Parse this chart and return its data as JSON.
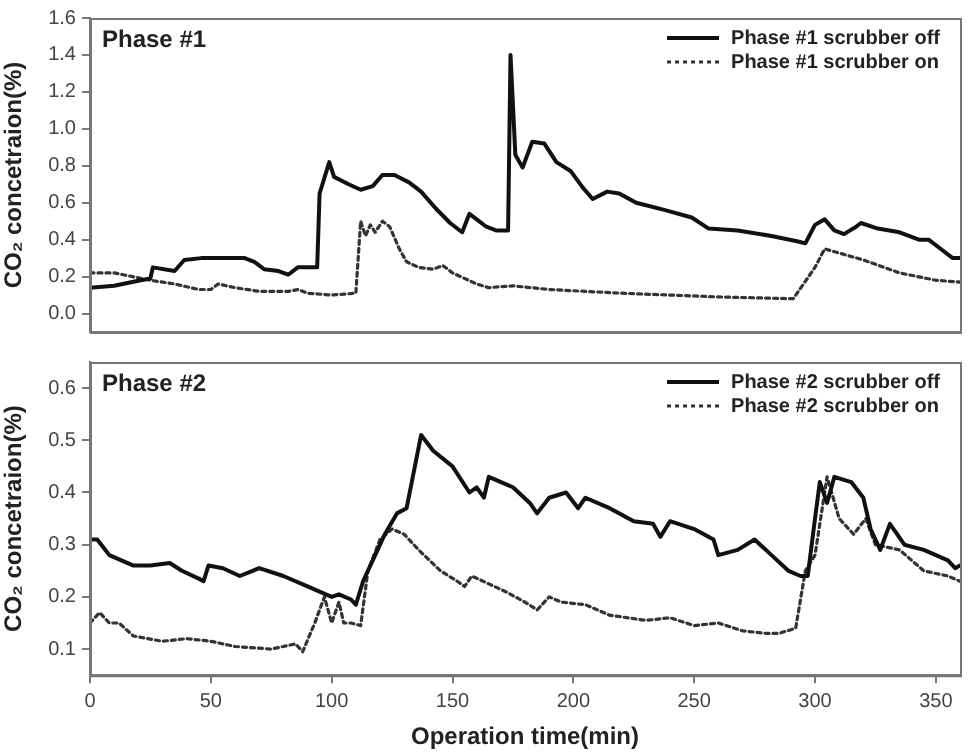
{
  "chart_data": [
    {
      "type": "line",
      "title": "Phase #1",
      "ylabel": "CO₂ concetraion(%)",
      "xlim": [
        0,
        360
      ],
      "xticks": [
        0,
        50,
        100,
        150,
        200,
        250,
        300,
        350
      ],
      "ylim": [
        -0.1,
        1.6
      ],
      "yticks": [
        {
          "value": 0,
          "label": "0.0"
        },
        0.2,
        0.4,
        0.6,
        0.8,
        {
          "value": 1,
          "label": "1.0"
        },
        1.2,
        1.4,
        1.6
      ],
      "tick_labels": "y",
      "grid": false,
      "legend": "top right",
      "marker": "none",
      "series": [
        {
          "name": "Phase #1 scrubber off",
          "color": "#111111",
          "line_style": "solid",
          "x": [
            0,
            10,
            21,
            25,
            26,
            35,
            39,
            46,
            54,
            64,
            68,
            72,
            78,
            82,
            86,
            94,
            95,
            99,
            101,
            107,
            112,
            117,
            121,
            126,
            132,
            137,
            143,
            149,
            154,
            157,
            160,
            164,
            168,
            173,
            174,
            176,
            179,
            183,
            188,
            193,
            199,
            204,
            208,
            214,
            219,
            226,
            238,
            249,
            256,
            268,
            282,
            293,
            296,
            300,
            304,
            308,
            312,
            317,
            319,
            326,
            335,
            343,
            347,
            351,
            357,
            360
          ],
          "values": [
            0.14,
            0.15,
            0.18,
            0.19,
            0.25,
            0.23,
            0.29,
            0.3,
            0.3,
            0.3,
            0.28,
            0.24,
            0.23,
            0.21,
            0.25,
            0.25,
            0.65,
            0.82,
            0.74,
            0.7,
            0.67,
            0.69,
            0.75,
            0.75,
            0.71,
            0.66,
            0.57,
            0.49,
            0.44,
            0.54,
            0.51,
            0.47,
            0.45,
            0.45,
            1.4,
            0.86,
            0.79,
            0.93,
            0.92,
            0.82,
            0.77,
            0.68,
            0.62,
            0.66,
            0.65,
            0.6,
            0.56,
            0.52,
            0.46,
            0.45,
            0.42,
            0.39,
            0.38,
            0.48,
            0.51,
            0.45,
            0.43,
            0.47,
            0.49,
            0.46,
            0.44,
            0.4,
            0.4,
            0.36,
            0.3,
            0.3
          ]
        },
        {
          "name": "Phase #1 scrubber on",
          "color": "#333333",
          "line_style": "dotted",
          "x": [
            0,
            10,
            25,
            35,
            45,
            50,
            53,
            60,
            70,
            82,
            86,
            90,
            100,
            110,
            112,
            114,
            116,
            118,
            121,
            124,
            128,
            131,
            136,
            142,
            146,
            150,
            160,
            165,
            175,
            190,
            220,
            260,
            291,
            300,
            304,
            320,
            335,
            350,
            360
          ],
          "values": [
            0.22,
            0.22,
            0.18,
            0.16,
            0.13,
            0.13,
            0.16,
            0.14,
            0.12,
            0.12,
            0.13,
            0.11,
            0.1,
            0.11,
            0.5,
            0.42,
            0.48,
            0.44,
            0.5,
            0.47,
            0.35,
            0.28,
            0.25,
            0.24,
            0.26,
            0.22,
            0.16,
            0.14,
            0.15,
            0.13,
            0.11,
            0.09,
            0.08,
            0.25,
            0.35,
            0.29,
            0.22,
            0.18,
            0.17
          ]
        }
      ]
    },
    {
      "type": "line",
      "title": "Phase #2",
      "xlabel": "Operation time(min)",
      "ylabel": "CO₂ concetraion(%)",
      "xlim": [
        0,
        360
      ],
      "xticks": [
        0,
        50,
        100,
        150,
        200,
        250,
        300,
        350
      ],
      "ylim": [
        0.05,
        0.65
      ],
      "yticks": [
        0.1,
        0.2,
        0.3,
        0.4,
        0.5,
        0.6
      ],
      "grid": false,
      "legend": "top right",
      "marker": "none",
      "series": [
        {
          "name": "Phase #2 scrubber off",
          "color": "#111111",
          "line_style": "solid",
          "x": [
            0,
            3,
            8,
            13,
            18,
            25,
            33,
            38,
            45,
            47,
            49,
            55,
            62,
            70,
            80,
            90,
            100,
            103,
            108,
            110,
            113,
            118,
            122,
            127,
            131,
            134,
            137,
            142,
            150,
            157,
            160,
            163,
            165,
            175,
            182,
            185,
            190,
            197,
            202,
            205,
            215,
            225,
            233,
            236,
            240,
            250,
            258,
            260,
            268,
            275,
            282,
            289,
            294,
            297,
            300,
            302,
            305,
            308,
            315,
            320,
            323,
            327,
            331,
            337,
            345,
            355,
            358,
            360
          ],
          "values": [
            0.31,
            0.31,
            0.28,
            0.27,
            0.26,
            0.26,
            0.265,
            0.25,
            0.235,
            0.23,
            0.26,
            0.255,
            0.24,
            0.255,
            0.24,
            0.22,
            0.2,
            0.205,
            0.195,
            0.185,
            0.23,
            0.28,
            0.32,
            0.36,
            0.37,
            0.44,
            0.51,
            0.48,
            0.45,
            0.4,
            0.41,
            0.39,
            0.43,
            0.41,
            0.38,
            0.36,
            0.39,
            0.4,
            0.37,
            0.39,
            0.37,
            0.345,
            0.34,
            0.315,
            0.345,
            0.33,
            0.31,
            0.28,
            0.29,
            0.31,
            0.28,
            0.25,
            0.24,
            0.24,
            0.35,
            0.42,
            0.38,
            0.43,
            0.42,
            0.39,
            0.33,
            0.29,
            0.34,
            0.3,
            0.29,
            0.27,
            0.255,
            0.26
          ]
        },
        {
          "name": "Phase #2 scrubber on",
          "color": "#333333",
          "line_style": "dotted",
          "x": [
            0,
            4,
            8,
            12,
            18,
            30,
            40,
            50,
            60,
            75,
            85,
            88,
            93,
            97,
            100,
            103,
            105,
            108,
            112,
            115,
            120,
            125,
            130,
            136,
            145,
            152,
            155,
            158,
            165,
            172,
            180,
            185,
            190,
            195,
            205,
            215,
            230,
            240,
            250,
            260,
            270,
            280,
            285,
            292,
            296,
            300,
            305,
            310,
            316,
            321,
            325,
            335,
            345,
            355,
            360
          ],
          "values": [
            0.15,
            0.17,
            0.15,
            0.15,
            0.125,
            0.115,
            0.12,
            0.115,
            0.105,
            0.1,
            0.11,
            0.095,
            0.15,
            0.2,
            0.15,
            0.19,
            0.15,
            0.15,
            0.145,
            0.25,
            0.31,
            0.33,
            0.32,
            0.29,
            0.25,
            0.23,
            0.22,
            0.24,
            0.225,
            0.21,
            0.19,
            0.175,
            0.2,
            0.19,
            0.185,
            0.165,
            0.155,
            0.16,
            0.145,
            0.15,
            0.135,
            0.13,
            0.13,
            0.14,
            0.25,
            0.28,
            0.43,
            0.35,
            0.32,
            0.35,
            0.3,
            0.29,
            0.25,
            0.24,
            0.23
          ]
        }
      ]
    }
  ]
}
